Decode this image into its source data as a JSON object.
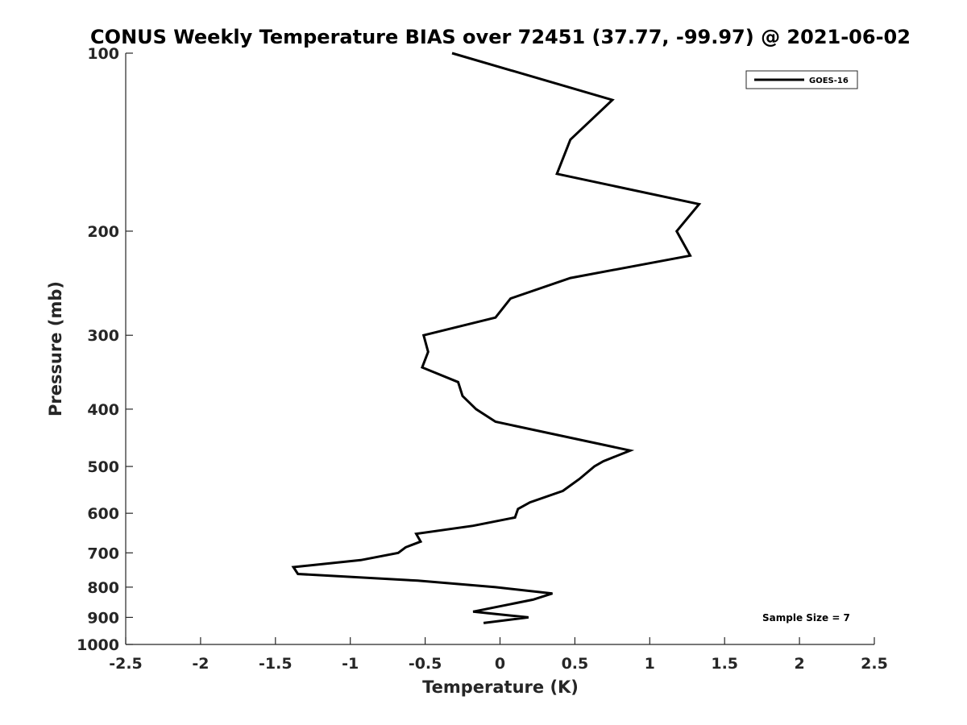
{
  "chart_data": {
    "type": "line",
    "title": "CONUS Weekly Temperature BIAS over 72451 (37.77, -99.97) @ 2021-06-02",
    "xlabel": "Temperature (K)",
    "ylabel": "Pressure (mb)",
    "xlim": [
      -2.5,
      2.5
    ],
    "ylim": [
      100,
      1000
    ],
    "yscale": "log",
    "y_reversed": true,
    "grid": false,
    "legend_position": "top-right",
    "x_ticks": [
      -2.5,
      -2,
      -1.5,
      -1,
      -0.5,
      0,
      0.5,
      1,
      1.5,
      2,
      2.5
    ],
    "x_tick_labels": [
      "-2.5",
      "-2",
      "-1.5",
      "-1",
      "-0.5",
      "0",
      "0.5",
      "1",
      "1.5",
      "2",
      "2.5"
    ],
    "y_ticks": [
      100,
      200,
      300,
      400,
      500,
      600,
      700,
      800,
      900,
      1000
    ],
    "y_tick_labels": [
      "100",
      "200",
      "300",
      "400",
      "500",
      "600",
      "700",
      "800",
      "900",
      "1000"
    ],
    "annotation": "Sample Size = 7",
    "series": [
      {
        "name": "GOES-16",
        "color": "#000000",
        "points": [
          {
            "x": -0.32,
            "y": 100
          },
          {
            "x": 0.75,
            "y": 120
          },
          {
            "x": 0.47,
            "y": 140
          },
          {
            "x": 0.38,
            "y": 160
          },
          {
            "x": 1.33,
            "y": 180
          },
          {
            "x": 1.18,
            "y": 200
          },
          {
            "x": 1.27,
            "y": 220
          },
          {
            "x": 0.47,
            "y": 240
          },
          {
            "x": 0.07,
            "y": 260
          },
          {
            "x": -0.03,
            "y": 280
          },
          {
            "x": -0.51,
            "y": 300
          },
          {
            "x": -0.48,
            "y": 320
          },
          {
            "x": -0.52,
            "y": 340
          },
          {
            "x": -0.28,
            "y": 360
          },
          {
            "x": -0.25,
            "y": 380
          },
          {
            "x": -0.16,
            "y": 400
          },
          {
            "x": -0.03,
            "y": 420
          },
          {
            "x": 0.87,
            "y": 470
          },
          {
            "x": 0.69,
            "y": 490
          },
          {
            "x": 0.63,
            "y": 500
          },
          {
            "x": 0.53,
            "y": 525
          },
          {
            "x": 0.42,
            "y": 550
          },
          {
            "x": 0.2,
            "y": 575
          },
          {
            "x": 0.12,
            "y": 590
          },
          {
            "x": 0.1,
            "y": 610
          },
          {
            "x": -0.18,
            "y": 630
          },
          {
            "x": -0.56,
            "y": 650
          },
          {
            "x": -0.53,
            "y": 670
          },
          {
            "x": -0.63,
            "y": 685
          },
          {
            "x": -0.68,
            "y": 700
          },
          {
            "x": -0.93,
            "y": 720
          },
          {
            "x": -1.38,
            "y": 740
          },
          {
            "x": -1.35,
            "y": 760
          },
          {
            "x": -0.55,
            "y": 780
          },
          {
            "x": -0.03,
            "y": 800
          },
          {
            "x": 0.35,
            "y": 820
          },
          {
            "x": 0.22,
            "y": 840
          },
          {
            "x": -0.18,
            "y": 880
          },
          {
            "x": 0.19,
            "y": 900
          },
          {
            "x": -0.11,
            "y": 920
          }
        ]
      }
    ]
  }
}
